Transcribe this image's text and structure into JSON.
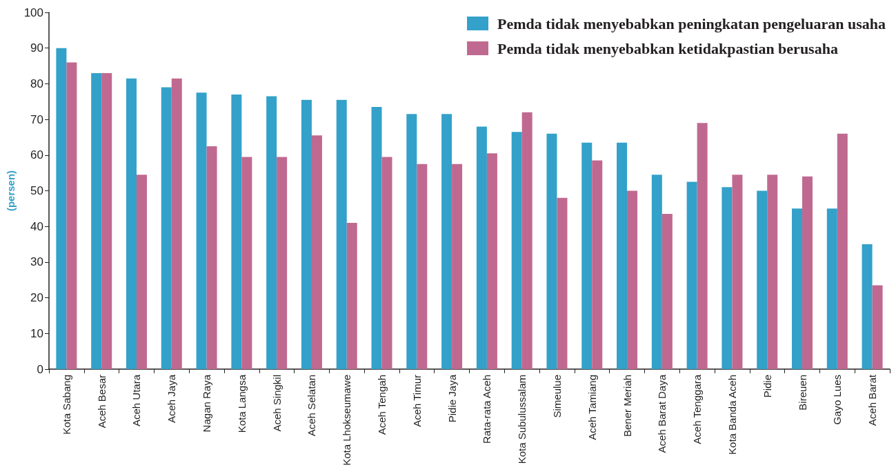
{
  "chart_data": {
    "type": "bar",
    "ylabel": "(persen)",
    "categories": [
      "Kota Sabang",
      "Aceh Besar",
      "Aceh Utara",
      "Aceh Jaya",
      "Nagan Raya",
      "Kota Langsa",
      "Aceh Singkil",
      "Aceh Selatan",
      "Kota Lhokseumawe",
      "Aceh Tengah",
      "Aceh Timur",
      "Pidie Jaya",
      "Rata-rata Aceh",
      "Kota Subulussalam",
      "Simeulue",
      "Aceh Tamiang",
      "Bener Meriah",
      "Aceh Barat Daya",
      "Aceh Tenggara",
      "Kota Banda Aceh",
      "Pidie",
      "Bireuen",
      "Gayo Lues",
      "Aceh Barat"
    ],
    "series": [
      {
        "name": "Pemda tidak menyebabkan peningkatan pengeluaran usaha",
        "color": "#33a1c9",
        "values": [
          90,
          83,
          81.5,
          79,
          77.5,
          77,
          76.5,
          75.5,
          75.5,
          73.5,
          71.5,
          71.5,
          68,
          66.5,
          66,
          63.5,
          63.5,
          54.5,
          52.5,
          51,
          50,
          45,
          45,
          35
        ]
      },
      {
        "name": "Pemda tidak menyebabkan ketidakpastian berusaha",
        "color": "#c06990",
        "values": [
          86,
          83,
          54.5,
          81.5,
          62.5,
          59.5,
          59.5,
          65.5,
          41,
          59.5,
          57.5,
          57.5,
          60.5,
          72,
          48,
          58.5,
          50,
          43.5,
          69,
          54.5,
          54.5,
          54,
          66,
          23.5
        ]
      }
    ],
    "ylim": [
      0,
      100
    ],
    "yticks": [
      0,
      10,
      20,
      30,
      40,
      50,
      60,
      70,
      80,
      90,
      100
    ],
    "grid": false,
    "legend": "top right"
  }
}
